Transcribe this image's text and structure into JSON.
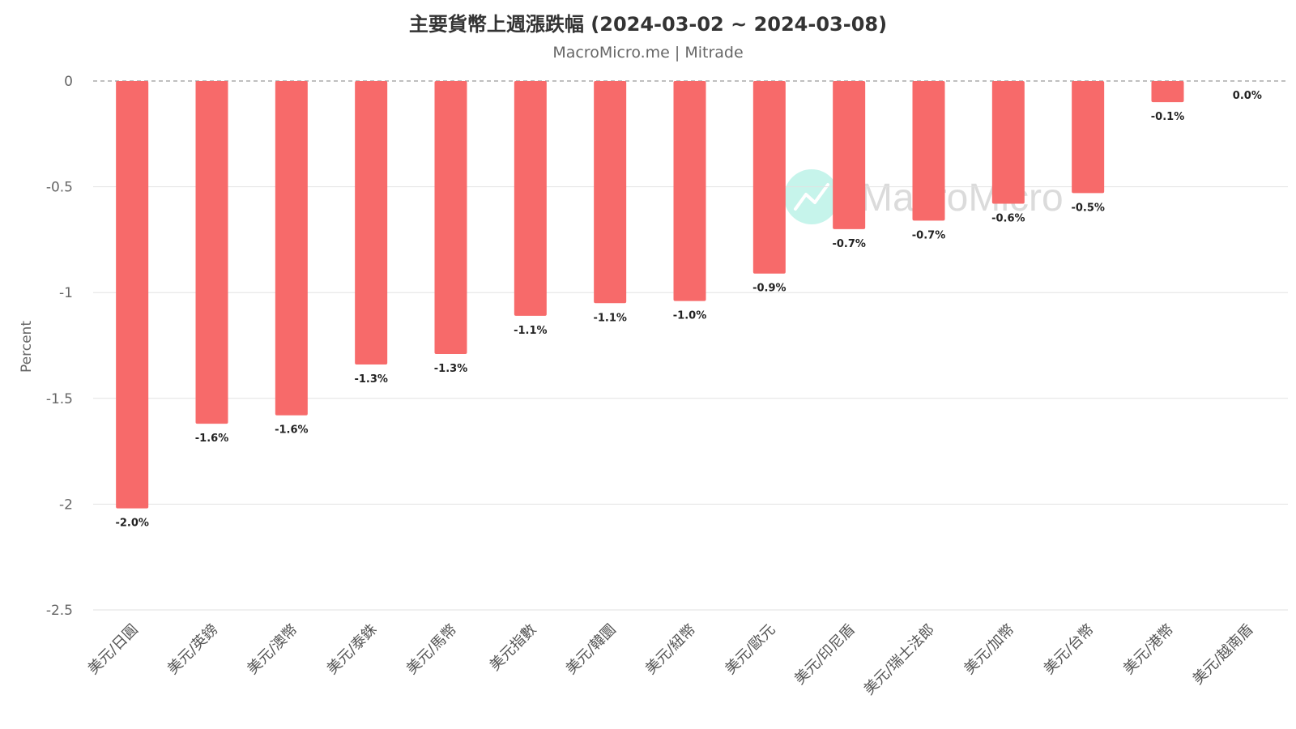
{
  "title": "主要貨幣上週漲跌幅 (2024-03-02 ~ 2024-03-08)",
  "subtitle": "MacroMicro.me | Mitrade",
  "watermark": "MacroMicro",
  "colors": {
    "bar": "#f76a6a",
    "zero_line": "#999999",
    "grid": "#e2e2e2",
    "watermark_icon": "#5fe0c8"
  },
  "chart_data": {
    "type": "bar",
    "title": "主要貨幣上週漲跌幅 (2024-03-02 ~ 2024-03-08)",
    "subtitle": "MacroMicro.me | Mitrade",
    "ylabel": "Percent",
    "xlabel": "",
    "ylim": [
      -2.5,
      0
    ],
    "yticks": [
      0,
      -0.5,
      -1,
      -1.5,
      -2,
      -2.5
    ],
    "ytick_labels": [
      "0",
      "-0.5",
      "-1",
      "-1.5",
      "-2",
      "-2.5"
    ],
    "grid": true,
    "categories": [
      "美元/日圓",
      "美元/英鎊",
      "美元/澳幣",
      "美元/泰銖",
      "美元/馬幣",
      "美元指數",
      "美元/韓圜",
      "美元/紐幣",
      "美元/歐元",
      "美元/印尼盾",
      "美元/瑞士法郎",
      "美元/加幣",
      "美元/台幣",
      "美元/港幣",
      "美元/越南盾"
    ],
    "values": [
      -2.02,
      -1.62,
      -1.58,
      -1.34,
      -1.29,
      -1.11,
      -1.05,
      -1.04,
      -0.91,
      -0.7,
      -0.66,
      -0.58,
      -0.53,
      -0.1,
      0.0
    ],
    "data_labels": [
      "-2.0%",
      "-1.6%",
      "-1.6%",
      "-1.3%",
      "-1.3%",
      "-1.1%",
      "-1.1%",
      "-1.0%",
      "-0.9%",
      "-0.7%",
      "-0.7%",
      "-0.6%",
      "-0.5%",
      "-0.1%",
      "0.0%"
    ]
  }
}
